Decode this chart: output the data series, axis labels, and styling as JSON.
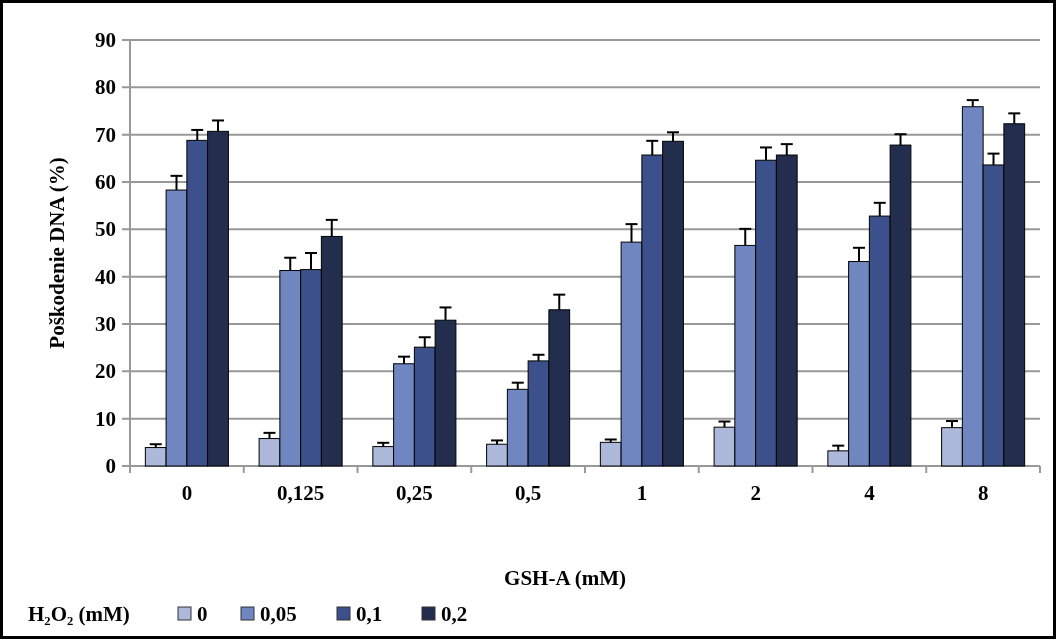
{
  "chart_data": {
    "type": "bar",
    "xlabel": "GSH-A (mM)",
    "ylabel": "Poškodenie DNA (%)",
    "legend_title": "H₂O₂ (mM)",
    "categories": [
      "0",
      "0,125",
      "0,25",
      "0,5",
      "1",
      "2",
      "4",
      "8"
    ],
    "series": [
      {
        "name": "0",
        "color": "#adb9db",
        "values": [
          3.9,
          5.8,
          4.1,
          4.6,
          5.0,
          8.2,
          3.2,
          8.1
        ],
        "errors": [
          0.7,
          1.2,
          0.8,
          0.8,
          0.6,
          1.2,
          1.1,
          1.4
        ]
      },
      {
        "name": "0,05",
        "color": "#6f86c0",
        "values": [
          58.3,
          41.3,
          21.6,
          16.2,
          47.3,
          46.6,
          43.2,
          75.9
        ],
        "errors": [
          3.0,
          2.7,
          1.5,
          1.4,
          3.8,
          3.5,
          2.9,
          1.4
        ]
      },
      {
        "name": "0,1",
        "color": "#3c518b",
        "values": [
          68.8,
          41.5,
          25.1,
          22.2,
          65.7,
          64.6,
          52.8,
          63.6
        ],
        "errors": [
          2.2,
          3.5,
          2.1,
          1.3,
          3.0,
          2.7,
          2.8,
          2.4
        ]
      },
      {
        "name": "0,2",
        "color": "#232e4e",
        "values": [
          70.7,
          48.5,
          30.8,
          33.0,
          68.6,
          65.7,
          67.8,
          72.3
        ],
        "errors": [
          2.3,
          3.5,
          2.7,
          3.2,
          1.9,
          2.3,
          2.3,
          2.2
        ]
      }
    ],
    "ylim": [
      0,
      90
    ],
    "yticks": [
      0,
      10,
      20,
      30,
      40,
      50,
      60,
      70,
      80,
      90
    ],
    "grid": "y",
    "legend": "bottom left"
  }
}
